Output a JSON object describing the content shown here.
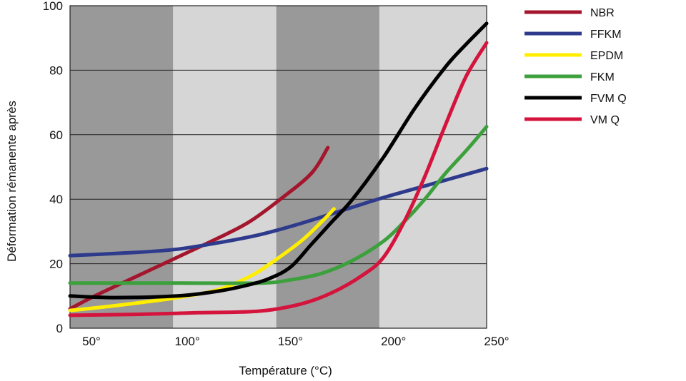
{
  "chart_data": {
    "type": "line",
    "title": "",
    "xlabel": "Température (°C)",
    "ylabel": "Déformation rémanente après",
    "xlim": [
      48,
      250
    ],
    "ylim": [
      0,
      100
    ],
    "x_ticks": [
      {
        "value": 50,
        "label": "50°"
      },
      {
        "value": 100,
        "label": "100°"
      },
      {
        "value": 150,
        "label": "150°"
      },
      {
        "value": 200,
        "label": "200°"
      },
      {
        "value": 250,
        "label": "250°"
      }
    ],
    "y_ticks": [
      {
        "value": 0,
        "label": "0"
      },
      {
        "value": 20,
        "label": "20"
      },
      {
        "value": 40,
        "label": "40"
      },
      {
        "value": 60,
        "label": "60"
      },
      {
        "value": 80,
        "label": "80"
      },
      {
        "value": 100,
        "label": "100"
      }
    ],
    "grid": {
      "horizontal": true,
      "vertical": false
    },
    "bands": [
      {
        "from": 48,
        "to": 98,
        "color": "#999999"
      },
      {
        "from": 98,
        "to": 148,
        "color": "#d6d6d6"
      },
      {
        "from": 148,
        "to": 198,
        "color": "#999999"
      },
      {
        "from": 198,
        "to": 250,
        "color": "#d6d6d6"
      }
    ],
    "legend_position": "right",
    "series": [
      {
        "name": "NBR",
        "color": "#a3162d",
        "points": [
          [
            48,
            6
          ],
          [
            60,
            10
          ],
          [
            80,
            16
          ],
          [
            100,
            22
          ],
          [
            120,
            28
          ],
          [
            135,
            33
          ],
          [
            150,
            40
          ],
          [
            165,
            48
          ],
          [
            173,
            56
          ]
        ]
      },
      {
        "name": "FFKM",
        "color": "#2e3a8c",
        "points": [
          [
            48,
            22.5
          ],
          [
            80,
            23.5
          ],
          [
            100,
            24.5
          ],
          [
            120,
            26.5
          ],
          [
            140,
            29
          ],
          [
            160,
            32.5
          ],
          [
            180,
            36.5
          ],
          [
            200,
            40.5
          ],
          [
            225,
            45
          ],
          [
            250,
            49.5
          ]
        ]
      },
      {
        "name": "EPDM",
        "color": "#ffee00",
        "points": [
          [
            48,
            5.5
          ],
          [
            70,
            7
          ],
          [
            100,
            9.5
          ],
          [
            120,
            12
          ],
          [
            135,
            16
          ],
          [
            145,
            20
          ],
          [
            160,
            27
          ],
          [
            170,
            33
          ],
          [
            176,
            37
          ]
        ]
      },
      {
        "name": "FKM",
        "color": "#3ca03c",
        "points": [
          [
            48,
            14
          ],
          [
            100,
            14
          ],
          [
            140,
            14
          ],
          [
            155,
            15
          ],
          [
            170,
            17
          ],
          [
            185,
            21
          ],
          [
            200,
            27
          ],
          [
            210,
            33
          ],
          [
            220,
            40
          ],
          [
            230,
            48
          ],
          [
            240,
            55
          ],
          [
            250,
            62.5
          ]
        ]
      },
      {
        "name": "FVM Q",
        "color": "#000000",
        "points": [
          [
            48,
            10
          ],
          [
            70,
            9.5
          ],
          [
            100,
            10
          ],
          [
            120,
            11.5
          ],
          [
            135,
            13.5
          ],
          [
            145,
            15.5
          ],
          [
            155,
            19
          ],
          [
            165,
            26
          ],
          [
            175,
            33
          ],
          [
            185,
            40
          ],
          [
            200,
            53
          ],
          [
            215,
            68
          ],
          [
            230,
            81
          ],
          [
            240,
            88
          ],
          [
            250,
            94.5
          ]
        ]
      },
      {
        "name": "VM Q",
        "color": "#d4143c",
        "points": [
          [
            48,
            4
          ],
          [
            80,
            4.3
          ],
          [
            110,
            4.8
          ],
          [
            140,
            5.3
          ],
          [
            160,
            7.5
          ],
          [
            175,
            11
          ],
          [
            190,
            16.5
          ],
          [
            200,
            22
          ],
          [
            210,
            33
          ],
          [
            220,
            47
          ],
          [
            230,
            63
          ],
          [
            240,
            78
          ],
          [
            250,
            88.5
          ]
        ]
      }
    ]
  }
}
